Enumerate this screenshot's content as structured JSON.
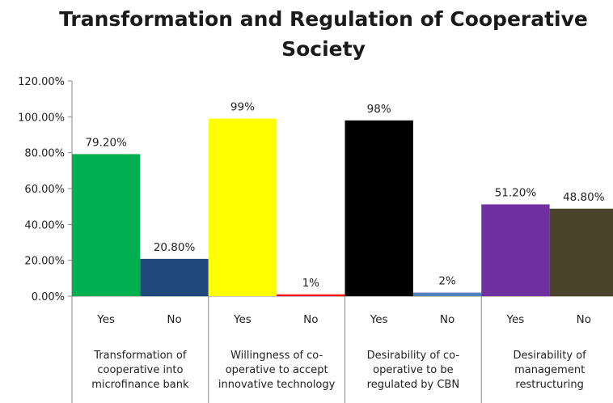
{
  "chart_data": {
    "type": "bar",
    "title_line1": "Transformation and Regulation of Cooperative",
    "title_line2": "Society",
    "ylim": [
      0,
      120
    ],
    "yticks": [
      "0.00%",
      "20.00%",
      "40.00%",
      "60.00%",
      "80.00%",
      "100.00%",
      "120.00%"
    ],
    "groups": [
      {
        "label": [
          "Transformation of",
          "cooperative into",
          "microfinance bank"
        ],
        "bars": [
          {
            "category": "Yes",
            "value": 79.2,
            "label": "79.20%",
            "color": "#00b050"
          },
          {
            "category": "No",
            "value": 20.8,
            "label": "20.80%",
            "color": "#1f497d"
          }
        ]
      },
      {
        "label": [
          "Willingness of co-",
          "operative to accept",
          "innovative technology"
        ],
        "bars": [
          {
            "category": "Yes",
            "value": 99,
            "label": "99%",
            "color": "#ffff00"
          },
          {
            "category": "No",
            "value": 1,
            "label": "1%",
            "color": "#ff0000"
          }
        ]
      },
      {
        "label": [
          "Desirability of co-",
          "operative  to be",
          "regulated by CBN"
        ],
        "bars": [
          {
            "category": "Yes",
            "value": 98,
            "label": "98%",
            "color": "#000000"
          },
          {
            "category": "No",
            "value": 2,
            "label": "2%",
            "color": "#4f81bd"
          }
        ]
      },
      {
        "label": [
          "Desirability of",
          "management",
          "restructuring"
        ],
        "bars": [
          {
            "category": "Yes",
            "value": 51.2,
            "label": "51.20%",
            "color": "#7030a0"
          },
          {
            "category": "No",
            "value": 48.8,
            "label": "48.80%",
            "color": "#4a452a"
          }
        ]
      }
    ]
  }
}
